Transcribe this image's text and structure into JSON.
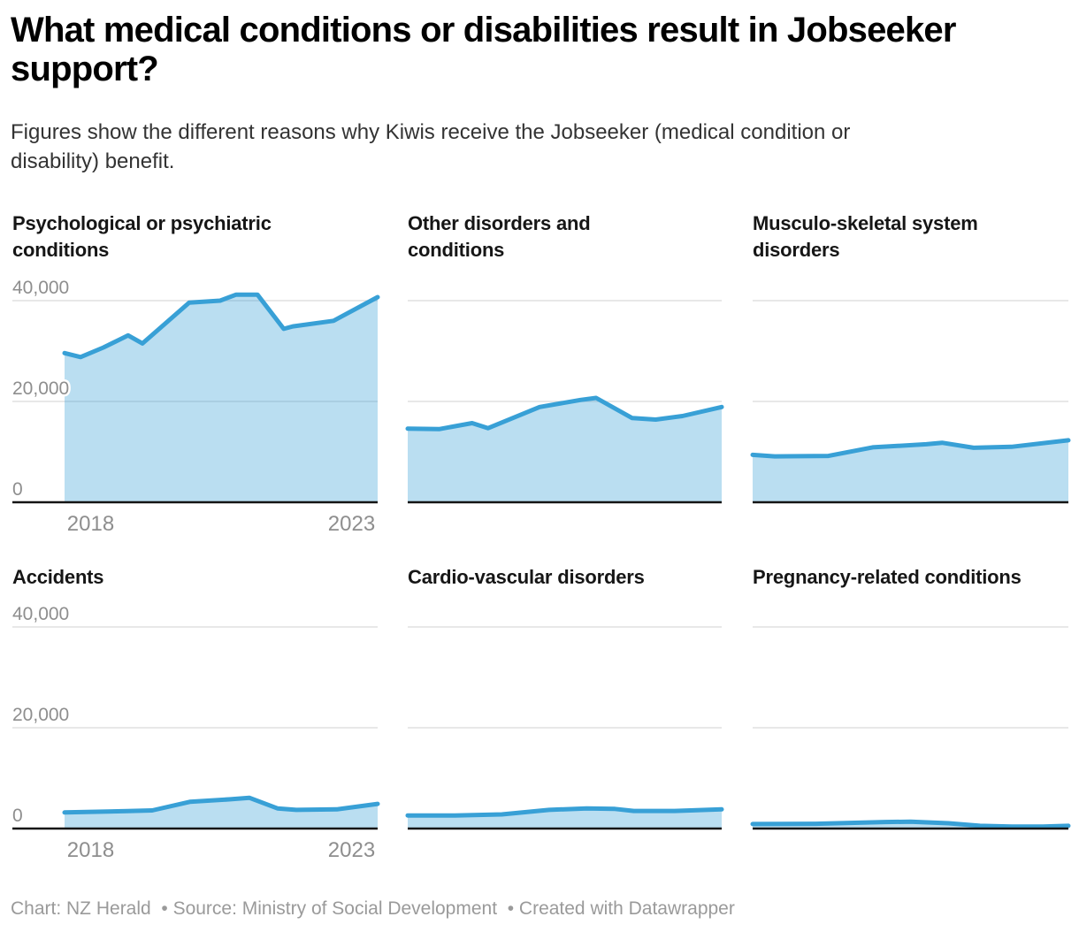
{
  "header": {
    "title_line1": "What medical conditions or disabilities result in Jobseeker",
    "title_line2": "support?",
    "subtitle_line1": "Figures show the different reasons why Kiwis receive the Jobseeker (medical condition or",
    "subtitle_line2": "disability) benefit."
  },
  "footer": {
    "credits": "Chart: NZ Herald  • Source: Ministry of Social Development  • Created with Datawrapper"
  },
  "chart_data": {
    "type": "area",
    "layout": "small multiples, 2 rows x 3 columns, shared y scale",
    "x_domain": "mid-2017 to mid-2023",
    "ylim": [
      0,
      43000
    ],
    "grid": "horizontal gridlines at 20,000 and 40,000; black baseline at 0",
    "x_ticks": [
      {
        "label": "2018",
        "f": 0.0833
      },
      {
        "label": "2023",
        "f": 0.9167
      }
    ],
    "y_ticks": [
      {
        "label": "40,000",
        "v": 40000
      },
      {
        "label": "20,000",
        "v": 20000
      },
      {
        "label": "0",
        "v": 0
      }
    ],
    "colors": {
      "line": "#38a0d6",
      "fill": "rgba(56,160,214,0.35)",
      "grid": "#e0e0e0",
      "axis": "#141414",
      "tick": "#8e8e8e"
    },
    "panels": [
      {
        "title_line1": "Psychological or psychiatric",
        "title_line2": "conditions",
        "y_axis": true,
        "points": [
          {
            "f": 0.0,
            "v": 29600
          },
          {
            "f": 0.051,
            "v": 28800
          },
          {
            "f": 0.124,
            "v": 30700
          },
          {
            "f": 0.203,
            "v": 33100
          },
          {
            "f": 0.249,
            "v": 31500
          },
          {
            "f": 0.398,
            "v": 39600
          },
          {
            "f": 0.497,
            "v": 40000
          },
          {
            "f": 0.548,
            "v": 41200
          },
          {
            "f": 0.616,
            "v": 41200
          },
          {
            "f": 0.7,
            "v": 34400
          },
          {
            "f": 0.729,
            "v": 34900
          },
          {
            "f": 0.859,
            "v": 36000
          },
          {
            "f": 1.0,
            "v": 40700
          }
        ]
      },
      {
        "title_line1": "Other disorders and",
        "title_line2": "conditions",
        "y_axis": false,
        "points": [
          {
            "f": 0.0,
            "v": 14600
          },
          {
            "f": 0.1,
            "v": 14500
          },
          {
            "f": 0.205,
            "v": 15700
          },
          {
            "f": 0.256,
            "v": 14700
          },
          {
            "f": 0.42,
            "v": 18900
          },
          {
            "f": 0.55,
            "v": 20300
          },
          {
            "f": 0.6,
            "v": 20700
          },
          {
            "f": 0.715,
            "v": 16700
          },
          {
            "f": 0.79,
            "v": 16400
          },
          {
            "f": 0.875,
            "v": 17100
          },
          {
            "f": 1.0,
            "v": 18900
          }
        ]
      },
      {
        "title_line1": "Musculo-skeletal system",
        "title_line2": "disorders",
        "y_axis": false,
        "points": [
          {
            "f": 0.0,
            "v": 9400
          },
          {
            "f": 0.07,
            "v": 9100
          },
          {
            "f": 0.24,
            "v": 9200
          },
          {
            "f": 0.38,
            "v": 10900
          },
          {
            "f": 0.55,
            "v": 11500
          },
          {
            "f": 0.6,
            "v": 11800
          },
          {
            "f": 0.7,
            "v": 10800
          },
          {
            "f": 0.82,
            "v": 11000
          },
          {
            "f": 1.0,
            "v": 12300
          }
        ]
      },
      {
        "title_line1": "Accidents",
        "title_line2": "",
        "y_axis": true,
        "points": [
          {
            "f": 0.0,
            "v": 3200
          },
          {
            "f": 0.2,
            "v": 3450
          },
          {
            "f": 0.28,
            "v": 3600
          },
          {
            "f": 0.4,
            "v": 5300
          },
          {
            "f": 0.53,
            "v": 5800
          },
          {
            "f": 0.59,
            "v": 6100
          },
          {
            "f": 0.68,
            "v": 4000
          },
          {
            "f": 0.74,
            "v": 3700
          },
          {
            "f": 0.87,
            "v": 3800
          },
          {
            "f": 1.0,
            "v": 4900
          }
        ]
      },
      {
        "title_line1": "Cardio-vascular disorders",
        "title_line2": "",
        "y_axis": false,
        "points": [
          {
            "f": 0.0,
            "v": 2600
          },
          {
            "f": 0.15,
            "v": 2600
          },
          {
            "f": 0.3,
            "v": 2800
          },
          {
            "f": 0.45,
            "v": 3700
          },
          {
            "f": 0.57,
            "v": 4000
          },
          {
            "f": 0.66,
            "v": 3900
          },
          {
            "f": 0.72,
            "v": 3500
          },
          {
            "f": 0.85,
            "v": 3500
          },
          {
            "f": 1.0,
            "v": 3800
          }
        ]
      },
      {
        "title_line1": "Pregnancy-related conditions",
        "title_line2": "",
        "y_axis": false,
        "points": [
          {
            "f": 0.0,
            "v": 900
          },
          {
            "f": 0.2,
            "v": 950
          },
          {
            "f": 0.42,
            "v": 1300
          },
          {
            "f": 0.5,
            "v": 1350
          },
          {
            "f": 0.62,
            "v": 1050
          },
          {
            "f": 0.72,
            "v": 550
          },
          {
            "f": 0.82,
            "v": 400
          },
          {
            "f": 0.92,
            "v": 400
          },
          {
            "f": 1.0,
            "v": 550
          }
        ]
      }
    ]
  }
}
